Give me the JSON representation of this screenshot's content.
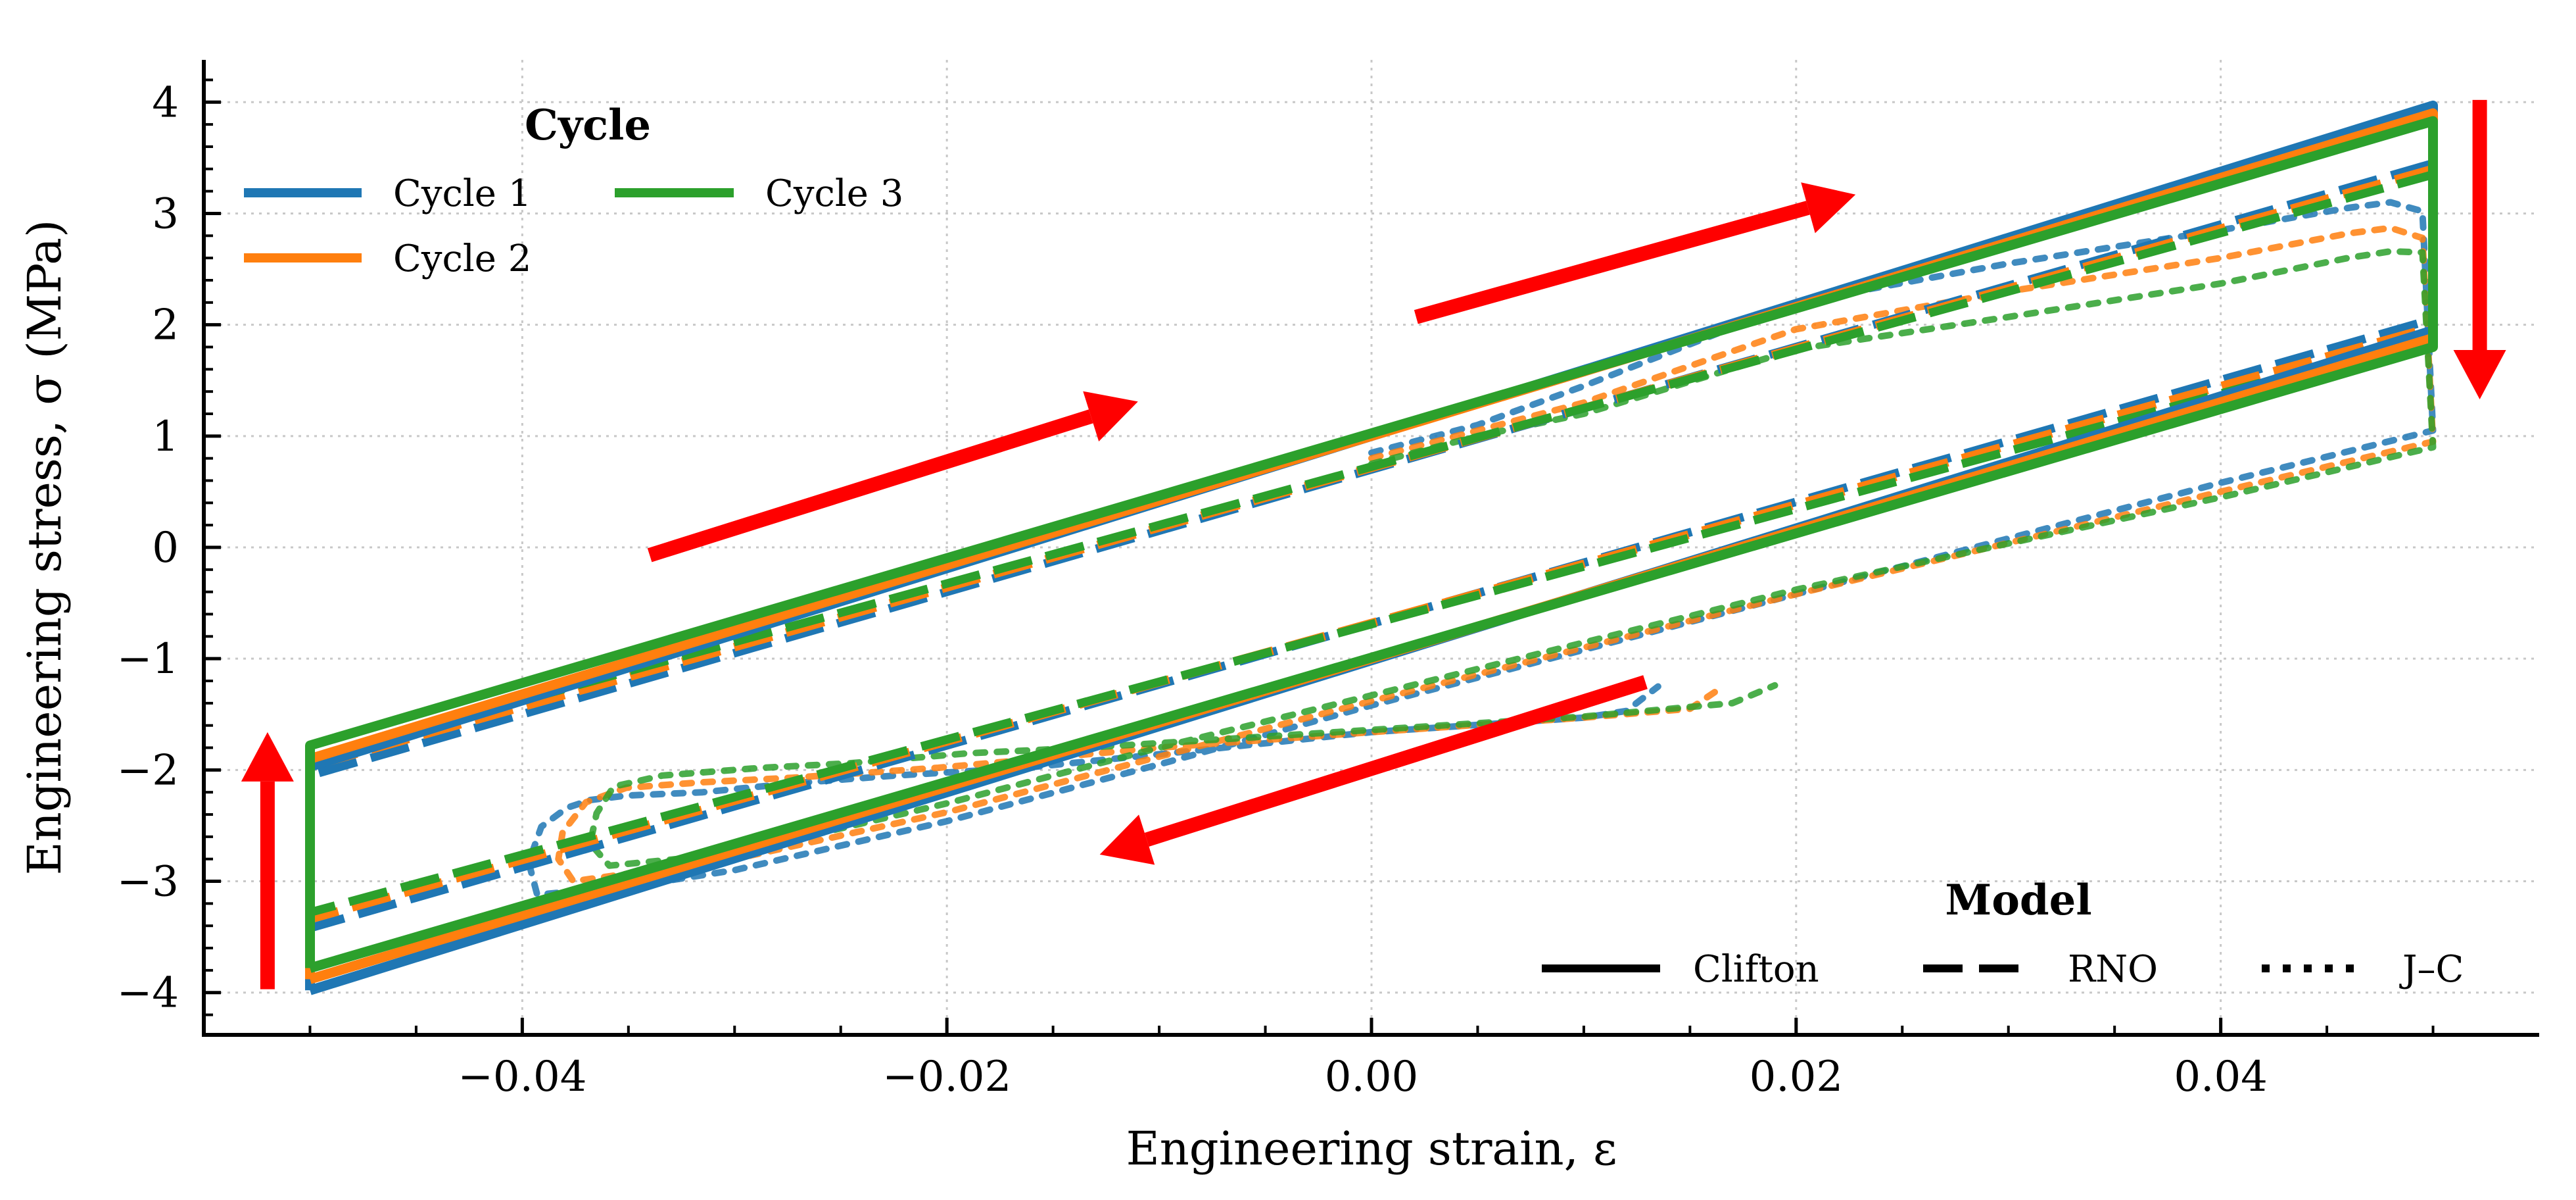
{
  "chart_data": {
    "type": "line",
    "title": "",
    "xlabel": "Engineering strain, ε",
    "ylabel": "Engineering stress, σ (MPa)",
    "xlim": [
      -0.055,
      0.055
    ],
    "ylim": [
      -4.38,
      4.38
    ],
    "xticks": [
      -0.04,
      -0.02,
      0.0,
      0.02,
      0.04
    ],
    "xtick_labels": [
      "−0.04",
      "−0.02",
      "0.00",
      "0.02",
      "0.04"
    ],
    "xminor_step": 0.005,
    "yticks": [
      -4,
      -3,
      -2,
      -1,
      0,
      1,
      2,
      3,
      4
    ],
    "ytick_labels": [
      "−4",
      "−3",
      "−2",
      "−1",
      "0",
      "1",
      "2",
      "3",
      "4"
    ],
    "yminor_step": 0.2,
    "grid": true,
    "colors": {
      "Cycle 1": "#1f77b4",
      "Cycle 2": "#ff7f0e",
      "Cycle 3": "#2ca02c",
      "arrow": "#ff0000"
    },
    "legends": [
      {
        "title": "Cycle",
        "placement": "top-left",
        "entries": [
          "Cycle 1",
          "Cycle 2",
          "Cycle 3"
        ]
      },
      {
        "title": "Model",
        "placement": "bottom-right",
        "entries": [
          {
            "label": "Clifton",
            "style": "solid"
          },
          {
            "label": "RNO",
            "style": "dashed"
          },
          {
            "label": "J–C",
            "style": "dotted"
          }
        ]
      }
    ],
    "series": [
      {
        "cycle": "Cycle 1",
        "model": "Clifton",
        "style": "solid",
        "points": [
          [
            -0.05,
            -3.98
          ],
          [
            -0.05,
            -1.97
          ],
          [
            0.05,
            3.97
          ],
          [
            0.05,
            1.95
          ],
          [
            -0.05,
            -3.98
          ]
        ]
      },
      {
        "cycle": "Cycle 2",
        "model": "Clifton",
        "style": "solid",
        "points": [
          [
            -0.05,
            -3.88
          ],
          [
            -0.05,
            -1.9
          ],
          [
            0.05,
            3.9
          ],
          [
            0.05,
            1.88
          ],
          [
            -0.05,
            -3.88
          ]
        ]
      },
      {
        "cycle": "Cycle 3",
        "model": "Clifton",
        "style": "solid",
        "points": [
          [
            -0.05,
            -3.78
          ],
          [
            -0.05,
            -1.78
          ],
          [
            0.05,
            3.83
          ],
          [
            0.05,
            1.8
          ],
          [
            -0.05,
            -3.78
          ]
        ]
      },
      {
        "cycle": "Cycle 1",
        "model": "RNO",
        "style": "dashed",
        "points": [
          [
            -0.05,
            -3.42
          ],
          [
            -0.05,
            -2.05
          ],
          [
            0.05,
            3.45
          ],
          [
            0.05,
            2.05
          ],
          [
            -0.05,
            -3.42
          ]
        ]
      },
      {
        "cycle": "Cycle 2",
        "model": "RNO",
        "style": "dashed",
        "points": [
          [
            -0.05,
            -3.34
          ],
          [
            -0.05,
            -1.97
          ],
          [
            0.05,
            3.4
          ],
          [
            0.05,
            1.98
          ],
          [
            -0.05,
            -3.34
          ]
        ]
      },
      {
        "cycle": "Cycle 3",
        "model": "RNO",
        "style": "dashed",
        "points": [
          [
            -0.05,
            -3.28
          ],
          [
            -0.05,
            -1.9
          ],
          [
            0.05,
            3.35
          ],
          [
            0.05,
            1.9
          ],
          [
            -0.05,
            -3.28
          ]
        ]
      },
      {
        "cycle": "Cycle 1",
        "model": "J–C",
        "style": "dotted",
        "points": [
          [
            0,
            0.85
          ],
          [
            0.005,
            1.1
          ],
          [
            0.01,
            1.45
          ],
          [
            0.02,
            2.2
          ],
          [
            0.03,
            2.55
          ],
          [
            0.04,
            2.85
          ],
          [
            0.046,
            3.05
          ],
          [
            0.048,
            3.1
          ],
          [
            0.0495,
            3.02
          ],
          [
            0.05,
            1.05
          ],
          [
            0.04,
            0.58
          ],
          [
            0.02,
            -0.42
          ],
          [
            0,
            -1.42
          ],
          [
            -0.01,
            -1.95
          ],
          [
            -0.02,
            -2.46
          ],
          [
            -0.03,
            -2.9
          ],
          [
            -0.035,
            -3.05
          ],
          [
            -0.0393,
            -3.12
          ],
          [
            -0.0397,
            -2.83
          ],
          [
            -0.0391,
            -2.51
          ],
          [
            -0.0379,
            -2.34
          ],
          [
            -0.0368,
            -2.27
          ],
          [
            -0.0351,
            -2.23
          ],
          [
            -0.0315,
            -2.2
          ],
          [
            -0.0273,
            -2.12
          ],
          [
            -0.0224,
            -2.05
          ],
          [
            -0.0163,
            -1.98
          ],
          [
            -0.008,
            -1.82
          ],
          [
            0,
            -1.66
          ],
          [
            0.01,
            -1.53
          ],
          [
            0.012,
            -1.47
          ],
          [
            0.0135,
            -1.25
          ]
        ]
      },
      {
        "cycle": "Cycle 2",
        "model": "J–C",
        "style": "dotted",
        "points": [
          [
            0,
            0.8
          ],
          [
            0.005,
            1.05
          ],
          [
            0.01,
            1.3
          ],
          [
            0.02,
            1.96
          ],
          [
            0.03,
            2.3
          ],
          [
            0.04,
            2.6
          ],
          [
            0.046,
            2.82
          ],
          [
            0.048,
            2.87
          ],
          [
            0.0495,
            2.78
          ],
          [
            0.05,
            0.95
          ],
          [
            0.04,
            0.5
          ],
          [
            0.02,
            -0.42
          ],
          [
            0,
            -1.38
          ],
          [
            -0.01,
            -1.88
          ],
          [
            -0.02,
            -2.38
          ],
          [
            -0.03,
            -2.8
          ],
          [
            -0.0376,
            -3.0
          ],
          [
            -0.0383,
            -2.8
          ],
          [
            -0.0381,
            -2.56
          ],
          [
            -0.037,
            -2.29
          ],
          [
            -0.0351,
            -2.16
          ],
          [
            -0.0315,
            -2.11
          ],
          [
            -0.0273,
            -2.07
          ],
          [
            -0.0204,
            -1.98
          ],
          [
            -0.01,
            -1.8
          ],
          [
            0,
            -1.66
          ],
          [
            0.01,
            -1.53
          ],
          [
            0.015,
            -1.45
          ],
          [
            0.0164,
            -1.27
          ]
        ]
      },
      {
        "cycle": "Cycle 3",
        "model": "J–C",
        "style": "dotted",
        "points": [
          [
            0,
            0.75
          ],
          [
            0.005,
            1.0
          ],
          [
            0.01,
            1.2
          ],
          [
            0.02,
            1.78
          ],
          [
            0.03,
            2.07
          ],
          [
            0.04,
            2.37
          ],
          [
            0.046,
            2.6
          ],
          [
            0.048,
            2.66
          ],
          [
            0.0495,
            2.65
          ],
          [
            0.05,
            0.9
          ],
          [
            0.04,
            0.45
          ],
          [
            0.02,
            -0.38
          ],
          [
            0,
            -1.33
          ],
          [
            -0.01,
            -1.8
          ],
          [
            -0.02,
            -2.3
          ],
          [
            -0.03,
            -2.75
          ],
          [
            -0.0359,
            -2.86
          ],
          [
            -0.0368,
            -2.66
          ],
          [
            -0.0365,
            -2.39
          ],
          [
            -0.0357,
            -2.15
          ],
          [
            -0.0334,
            -2.05
          ],
          [
            -0.0287,
            -1.98
          ],
          [
            -0.0246,
            -1.94
          ],
          [
            -0.019,
            -1.85
          ],
          [
            -0.0135,
            -1.8
          ],
          [
            -0.005,
            -1.7
          ],
          [
            0,
            -1.64
          ],
          [
            0.01,
            -1.52
          ],
          [
            0.017,
            -1.4
          ],
          [
            0.019,
            -1.24
          ]
        ]
      }
    ],
    "annotations": [
      {
        "type": "arrow",
        "from": [
          -0.034,
          -0.07
        ],
        "to": [
          -0.011,
          1.31
        ]
      },
      {
        "type": "arrow",
        "from": [
          0.0021,
          2.07
        ],
        "to": [
          0.0228,
          3.17
        ]
      },
      {
        "type": "arrow",
        "from": [
          0.0522,
          4.02
        ],
        "to": [
          0.0522,
          1.33
        ]
      },
      {
        "type": "arrow",
        "from": [
          0.0129,
          -1.21
        ],
        "to": [
          -0.0128,
          -2.76
        ]
      },
      {
        "type": "arrow",
        "from": [
          -0.052,
          -3.97
        ],
        "to": [
          -0.052,
          -1.66
        ]
      }
    ]
  }
}
